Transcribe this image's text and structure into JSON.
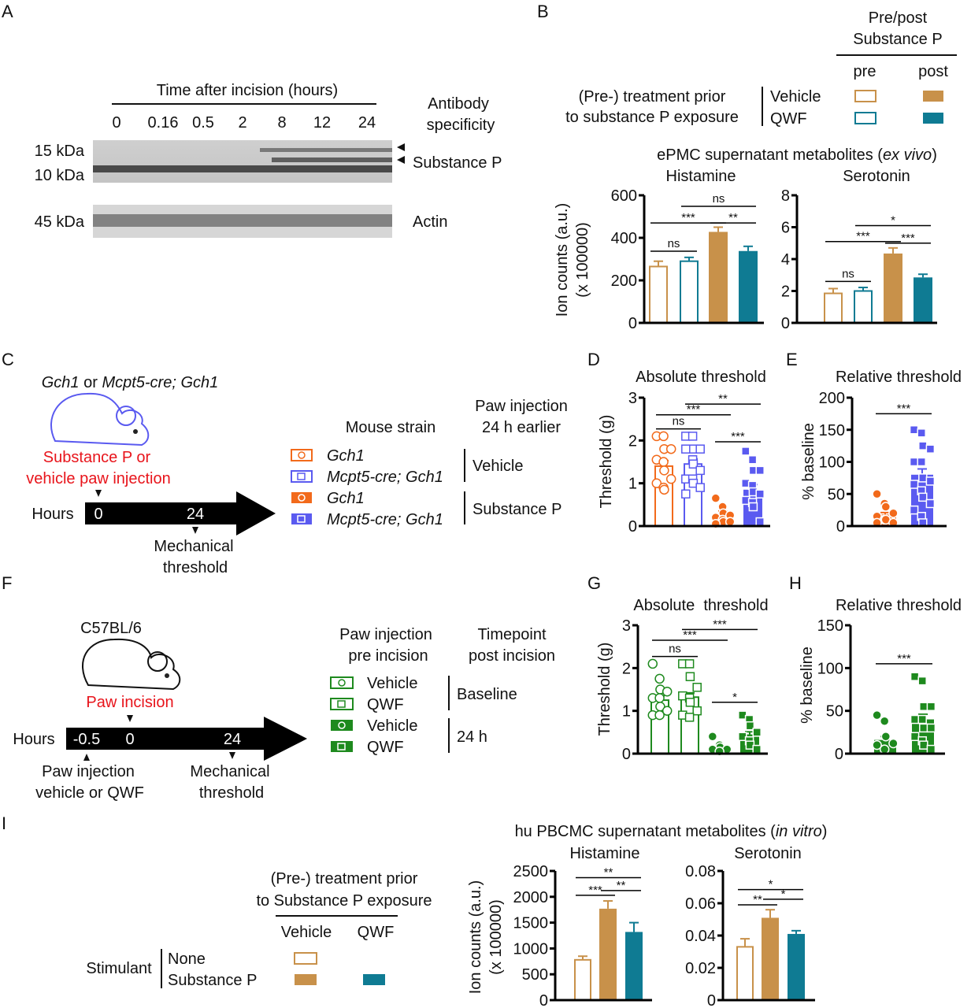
{
  "colors": {
    "vehicle": "#c8914a",
    "qwf": "#0f7b93",
    "gch1": "#f26a1b",
    "mcpt5": "#5a5af0",
    "green": "#1e8a1e",
    "red": "#e8141b"
  },
  "panelA": {
    "label": "A",
    "axis_title": "Time after incision (hours)",
    "lanes": [
      "0",
      "0.16",
      "0.5",
      "2",
      "8",
      "12",
      "24"
    ],
    "antibody_title": [
      "Antibody",
      "specificity"
    ],
    "markers": [
      "15 kDa",
      "10 kDa",
      "45 kDa"
    ],
    "band_labels": [
      "Substance P",
      "Actin"
    ]
  },
  "panelB": {
    "label": "B",
    "prepost_title": [
      "Pre/post",
      "Substance P"
    ],
    "prepost": [
      "pre",
      "post"
    ],
    "treatment_title": [
      "(Pre-) treatment prior",
      "to substance P exposure"
    ],
    "treatments": [
      "Vehicle",
      "QWF"
    ],
    "title_main": "ePMC supernatant metabolites (",
    "title_italic": "ex vivo",
    "title_end": ")",
    "subtitles": [
      "Histamine",
      "Serotonin"
    ],
    "ylabel": [
      "Ion counts (a.u.)",
      "(x 100000)"
    ]
  },
  "panelC": {
    "label": "C",
    "strain_a": "Gch1",
    "strain_or": " or ",
    "strain_b": "Mcpt5-cre; Gch1",
    "injection": [
      "Substance P or",
      "vehicle paw injection"
    ],
    "hours": "Hours",
    "times": [
      "0",
      "24"
    ],
    "readout": [
      "Mechanical",
      "threshold"
    ],
    "legend_strain_title": "Mouse strain",
    "legend_inj_title": [
      "Paw injection",
      "24 h earlier"
    ],
    "legend_rows": [
      "Gch1",
      "Mcpt5-cre; Gch1",
      "Gch1",
      "Mcpt5-cre; Gch1"
    ],
    "legend_groups": [
      "Vehicle",
      "Substance P"
    ]
  },
  "panelD": {
    "label": "D",
    "title": "Absolute threshold",
    "ylabel": "Threshold (g)"
  },
  "panelE": {
    "label": "E",
    "title": "Relative threshold",
    "ylabel": "% baseline"
  },
  "panelF": {
    "label": "F",
    "strain": "C57BL/6",
    "incision": "Paw incision",
    "hours": "Hours",
    "times": [
      "-0.5",
      "0",
      "24"
    ],
    "pre_label": [
      "Paw injection",
      "vehicle or QWF"
    ],
    "readout": [
      "Mechanical",
      "threshold"
    ],
    "legend_inj_title": [
      "Paw injection",
      "pre incision"
    ],
    "legend_time_title": [
      "Timepoint",
      "post incision"
    ],
    "legend_rows": [
      "Vehicle",
      "QWF",
      "Vehicle",
      "QWF"
    ],
    "legend_groups": [
      "Baseline",
      "24 h"
    ]
  },
  "panelG": {
    "label": "G",
    "title": "Absolute  threshold",
    "ylabel": "Threshold (g)"
  },
  "panelH": {
    "label": "H",
    "title": "Relative threshold",
    "ylabel": "% baseline"
  },
  "panelI": {
    "label": "I",
    "title_main": "hu PBCMC supernatant metabolites (",
    "title_italic": "in vitro",
    "title_end": ")",
    "subtitles": [
      "Histamine",
      "Serotonin"
    ],
    "treatment_title": [
      "(Pre-) treatment prior",
      "to Substance P exposure"
    ],
    "columns": [
      "Vehicle",
      "QWF"
    ],
    "stimulant_label": "Stimulant",
    "stimulants": [
      "None",
      "Substance P"
    ],
    "ylabel": [
      "Ion counts (a.u.)",
      "(x 100000)"
    ]
  },
  "chart_data": [
    {
      "id": "B-histamine",
      "type": "bar",
      "title": "Histamine",
      "ylim": [
        0,
        600
      ],
      "yticks": [
        0,
        200,
        400,
        600
      ],
      "bars": [
        {
          "group": "Vehicle pre",
          "mean": 265,
          "sem": 25,
          "style": "outline",
          "color": "#c8914a"
        },
        {
          "group": "QWF pre",
          "mean": 290,
          "sem": 18,
          "style": "outline",
          "color": "#0f7b93"
        },
        {
          "group": "Vehicle post",
          "mean": 428,
          "sem": 22,
          "style": "filled",
          "color": "#c8914a"
        },
        {
          "group": "QWF post",
          "mean": 338,
          "sem": 22,
          "style": "filled",
          "color": "#0f7b93"
        }
      ],
      "significance": [
        {
          "from": 0,
          "to": 1,
          "label": "ns",
          "y": 337
        },
        {
          "from": 0,
          "to": 2,
          "label": "***",
          "y": 470
        },
        {
          "from": 2,
          "to": 3,
          "label": "**",
          "y": 470
        },
        {
          "from": 1,
          "to": 3,
          "label": "ns",
          "y": 548
        }
      ]
    },
    {
      "id": "B-serotonin",
      "type": "bar",
      "title": "Serotonin",
      "ylim": [
        0,
        8
      ],
      "yticks": [
        0,
        2,
        4,
        6,
        8
      ],
      "bars": [
        {
          "group": "Vehicle pre",
          "mean": 1.85,
          "sem": 0.3,
          "style": "outline",
          "color": "#c8914a"
        },
        {
          "group": "QWF pre",
          "mean": 2.0,
          "sem": 0.22,
          "style": "outline",
          "color": "#0f7b93"
        },
        {
          "group": "Vehicle post",
          "mean": 4.35,
          "sem": 0.35,
          "style": "filled",
          "color": "#c8914a"
        },
        {
          "group": "QWF post",
          "mean": 2.85,
          "sem": 0.2,
          "style": "filled",
          "color": "#0f7b93"
        }
      ],
      "significance": [
        {
          "from": 0,
          "to": 1,
          "label": "ns",
          "y": 2.6
        },
        {
          "from": 0,
          "to": 2,
          "label": "***",
          "y": 5.1
        },
        {
          "from": 2,
          "to": 3,
          "label": "***",
          "y": 5.0
        },
        {
          "from": 1,
          "to": 3,
          "label": "*",
          "y": 6.1
        }
      ]
    },
    {
      "id": "D",
      "type": "bar",
      "title": "Absolute threshold",
      "ylabel": "Threshold (g)",
      "ylim": [
        0,
        3
      ],
      "yticks": [
        0,
        1,
        2,
        3
      ],
      "bars": [
        {
          "group": "Gch1 Vehicle",
          "mean": 1.4,
          "sem": 0.13,
          "style": "outline",
          "color": "#f26a1b",
          "marker": "circle",
          "points": [
            2.1,
            2.1,
            1.8,
            1.8,
            1.55,
            1.5,
            1.3,
            1.1,
            1.0,
            0.9,
            0.85
          ]
        },
        {
          "group": "Mcpt5-cre; Gch1 Vehicle",
          "mean": 1.45,
          "sem": 0.12,
          "style": "outline",
          "color": "#5a5af0",
          "marker": "square",
          "points": [
            2.1,
            2.1,
            1.8,
            1.8,
            1.8,
            1.55,
            1.45,
            1.3,
            1.1,
            1.1,
            1.0,
            0.9,
            0.75
          ]
        },
        {
          "group": "Gch1 Substance P",
          "mean": 0.3,
          "sem": 0.05,
          "style": "filled",
          "color": "#f26a1b",
          "marker": "circle",
          "points": [
            0.65,
            0.45,
            0.3,
            0.25,
            0.2,
            0.15,
            0.1,
            0.1,
            0.05
          ]
        },
        {
          "group": "Mcpt5-cre; Gch1 Substance P",
          "mean": 0.85,
          "sem": 0.12,
          "style": "filled",
          "color": "#5a5af0",
          "marker": "square",
          "points": [
            1.75,
            1.55,
            1.3,
            1.3,
            1.0,
            0.95,
            0.8,
            0.75,
            0.6,
            0.55,
            0.45,
            0.1
          ]
        }
      ],
      "significance": [
        {
          "from": 0,
          "to": 1,
          "label": "ns",
          "y": 2.27
        },
        {
          "from": 0,
          "to": 2,
          "label": "***",
          "y": 2.6
        },
        {
          "from": 1,
          "to": 3,
          "label": "**",
          "y": 2.85
        },
        {
          "from": 2,
          "to": 3,
          "label": "***",
          "y": 1.97
        }
      ]
    },
    {
      "id": "E",
      "type": "bar",
      "title": "Relative threshold",
      "ylabel": "% baseline",
      "ylim": [
        0,
        200
      ],
      "yticks": [
        0,
        50,
        100,
        150,
        200
      ],
      "bars": [
        {
          "group": "Gch1",
          "mean": 18,
          "sem": 3,
          "style": "filled",
          "color": "#f26a1b",
          "marker": "circle",
          "points": [
            50,
            35,
            30,
            20,
            15,
            10,
            10,
            5,
            5
          ]
        },
        {
          "group": "Mcpt5-cre; Gch1",
          "mean": 80,
          "sem": 9,
          "style": "filled",
          "color": "#5a5af0",
          "marker": "square",
          "points": [
            150,
            145,
            125,
            120,
            100,
            100,
            75,
            70,
            65,
            55,
            45,
            35,
            25,
            15,
            5
          ]
        }
      ],
      "significance": [
        {
          "from": 0,
          "to": 1,
          "label": "***",
          "y": 175
        }
      ]
    },
    {
      "id": "G",
      "type": "bar",
      "title": "Absolute  threshold",
      "ylabel": "Threshold (g)",
      "ylim": [
        0,
        3
      ],
      "yticks": [
        0,
        1,
        2,
        3
      ],
      "bars": [
        {
          "group": "Vehicle Baseline",
          "mean": 1.25,
          "sem": 0.1,
          "style": "outline",
          "color": "#1e8a1e",
          "marker": "circle",
          "points": [
            2.1,
            1.75,
            1.5,
            1.45,
            1.3,
            1.3,
            1.1,
            1.0,
            0.9,
            0.9
          ]
        },
        {
          "group": "QWF Baseline",
          "mean": 1.32,
          "sem": 0.1,
          "style": "outline",
          "color": "#1e8a1e",
          "marker": "square",
          "points": [
            2.1,
            2.1,
            1.8,
            1.55,
            1.35,
            1.3,
            1.2,
            1.0,
            0.9,
            0.85
          ]
        },
        {
          "group": "Vehicle 24 h",
          "mean": 0.15,
          "sem": 0.03,
          "style": "filled",
          "color": "#1e8a1e",
          "marker": "circle",
          "points": [
            0.4,
            0.2,
            0.15,
            0.1,
            0.1,
            0.05
          ]
        },
        {
          "group": "QWF 24 h",
          "mean": 0.45,
          "sem": 0.06,
          "style": "filled",
          "color": "#1e8a1e",
          "marker": "square",
          "points": [
            0.9,
            0.8,
            0.65,
            0.5,
            0.4,
            0.3,
            0.2,
            0.1
          ]
        }
      ],
      "significance": [
        {
          "from": 0,
          "to": 1,
          "label": "ns",
          "y": 2.27
        },
        {
          "from": 0,
          "to": 2,
          "label": "***",
          "y": 2.65
        },
        {
          "from": 1,
          "to": 3,
          "label": "***",
          "y": 2.9
        },
        {
          "from": 2,
          "to": 3,
          "label": "*",
          "y": 1.2
        }
      ]
    },
    {
      "id": "H",
      "type": "bar",
      "title": "Relative threshold",
      "ylabel": "% baseline",
      "ylim": [
        0,
        150
      ],
      "yticks": [
        0,
        50,
        100,
        150
      ],
      "bars": [
        {
          "group": "Vehicle",
          "mean": 16,
          "sem": 4,
          "style": "filled",
          "color": "#1e8a1e",
          "marker": "circle",
          "points": [
            45,
            38,
            20,
            12,
            10,
            5
          ]
        },
        {
          "group": "QWF",
          "mean": 40,
          "sem": 6,
          "style": "filled",
          "color": "#1e8a1e",
          "marker": "square",
          "points": [
            90,
            85,
            55,
            55,
            40,
            40,
            30,
            30,
            20,
            15,
            10,
            5
          ]
        }
      ],
      "significance": [
        {
          "from": 0,
          "to": 1,
          "label": "***",
          "y": 105
        }
      ]
    },
    {
      "id": "I-histamine",
      "type": "bar",
      "title": "Histamine",
      "ylim": [
        0,
        2500
      ],
      "yticks": [
        0,
        500,
        1000,
        1500,
        2000,
        2500
      ],
      "bars": [
        {
          "group": "None Vehicle",
          "mean": 780,
          "sem": 70,
          "style": "outline",
          "color": "#c8914a"
        },
        {
          "group": "Substance P Vehicle",
          "mean": 1770,
          "sem": 150,
          "style": "filled",
          "color": "#c8914a"
        },
        {
          "group": "Substance P QWF",
          "mean": 1320,
          "sem": 180,
          "style": "filled",
          "color": "#0f7b93"
        }
      ],
      "significance": [
        {
          "from": 0,
          "to": 1,
          "label": "***",
          "y": 2030
        },
        {
          "from": 1,
          "to": 2,
          "label": "**",
          "y": 2120
        },
        {
          "from": 0,
          "to": 2,
          "label": "**",
          "y": 2370
        }
      ]
    },
    {
      "id": "I-serotonin",
      "type": "bar",
      "title": "Serotonin",
      "ylim": [
        0,
        0.08
      ],
      "yticks": [
        0,
        0.02,
        0.04,
        0.06,
        0.08
      ],
      "bars": [
        {
          "group": "None Vehicle",
          "mean": 0.033,
          "sem": 0.005,
          "style": "outline",
          "color": "#c8914a"
        },
        {
          "group": "Substance P Vehicle",
          "mean": 0.051,
          "sem": 0.005,
          "style": "filled",
          "color": "#c8914a"
        },
        {
          "group": "Substance P QWF",
          "mean": 0.041,
          "sem": 0.002,
          "style": "filled",
          "color": "#0f7b93"
        }
      ],
      "significance": [
        {
          "from": 0,
          "to": 1,
          "label": "**",
          "y": 0.059
        },
        {
          "from": 1,
          "to": 2,
          "label": "*",
          "y": 0.0625
        },
        {
          "from": 0,
          "to": 2,
          "label": "*",
          "y": 0.0685
        }
      ]
    }
  ]
}
